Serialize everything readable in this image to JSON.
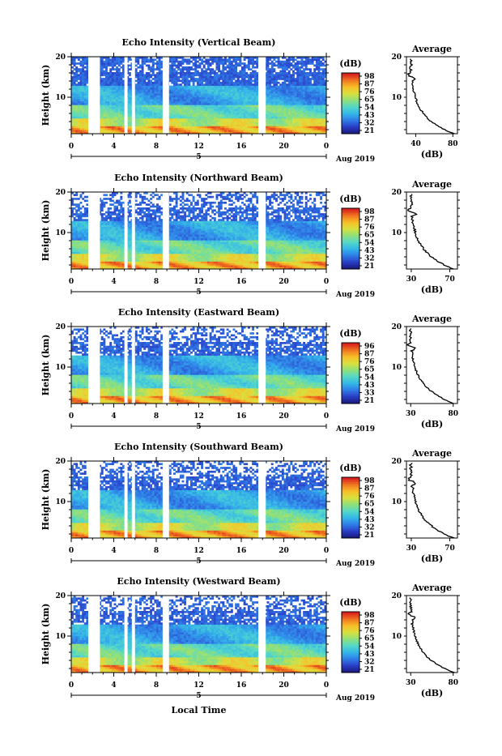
{
  "chart_data": [
    {
      "type": "heatmap",
      "title": "Echo Intensity (Vertical Beam)",
      "ylabel": "Height (km)",
      "xticks": [
        "0",
        "4",
        "8",
        "12",
        "16",
        "20",
        "0"
      ],
      "yticks": [
        "20",
        "10"
      ],
      "xlim": [
        0,
        24
      ],
      "ylim": [
        1,
        20
      ],
      "date_label": "Aug 2019",
      "date_mark": "5",
      "colorbar": {
        "unit": "(dB)",
        "ticks": [
          "98",
          "87",
          "76",
          "65",
          "54",
          "43",
          "32",
          "21"
        ]
      },
      "gaps_hours": [
        [
          1.6,
          2.7
        ],
        [
          5.0,
          5.3
        ],
        [
          5.7,
          6.0
        ],
        [
          8.6,
          9.2
        ],
        [
          17.6,
          18.3
        ]
      ],
      "profile": {
        "title": "Average",
        "xlabel": "(dB)",
        "xticks": [
          "40",
          "80"
        ],
        "xlim": [
          30,
          85
        ],
        "yticks": [
          "20",
          "10"
        ]
      }
    },
    {
      "type": "heatmap",
      "title": "Echo Intensity (Northward Beam)",
      "ylabel": "Height (km)",
      "xticks": [
        "0",
        "4",
        "8",
        "12",
        "16",
        "20",
        "0"
      ],
      "yticks": [
        "20",
        "10"
      ],
      "xlim": [
        0,
        24
      ],
      "ylim": [
        1,
        20
      ],
      "date_label": "Aug 2019",
      "date_mark": "5",
      "colorbar": {
        "unit": "(dB)",
        "ticks": [
          "98",
          "87",
          "76",
          "65",
          "54",
          "43",
          "32",
          "21"
        ]
      },
      "gaps_hours": [
        [
          1.6,
          2.7
        ],
        [
          5.0,
          5.3
        ],
        [
          5.7,
          6.0
        ],
        [
          8.6,
          9.2
        ],
        [
          17.6,
          18.3
        ]
      ],
      "profile": {
        "title": "Average",
        "xlabel": "(dB)",
        "xticks": [
          "30",
          "70"
        ],
        "xlim": [
          25,
          78
        ],
        "yticks": [
          "20",
          "10"
        ]
      }
    },
    {
      "type": "heatmap",
      "title": "Echo Intensity (Eastward Beam)",
      "ylabel": "Height (km)",
      "xticks": [
        "0",
        "4",
        "8",
        "12",
        "16",
        "20",
        "0"
      ],
      "yticks": [
        "20",
        "10"
      ],
      "xlim": [
        0,
        24
      ],
      "ylim": [
        1,
        20
      ],
      "date_label": "Aug 2019",
      "date_mark": "5",
      "colorbar": {
        "unit": "(dB)",
        "ticks": [
          "96",
          "87",
          "76",
          "65",
          "54",
          "43",
          "33",
          "21"
        ]
      },
      "gaps_hours": [
        [
          1.6,
          2.7
        ],
        [
          5.0,
          5.3
        ],
        [
          5.7,
          6.0
        ],
        [
          8.6,
          9.2
        ],
        [
          17.6,
          18.3
        ]
      ],
      "profile": {
        "title": "Average",
        "xlabel": "(dB)",
        "xticks": [
          "30",
          "80"
        ],
        "xlim": [
          25,
          85
        ],
        "yticks": [
          "20",
          "10"
        ]
      }
    },
    {
      "type": "heatmap",
      "title": "Echo Intensity (Southward Beam)",
      "ylabel": "Height (km)",
      "xticks": [
        "0",
        "4",
        "8",
        "12",
        "16",
        "20",
        "0"
      ],
      "yticks": [
        "20",
        "10"
      ],
      "xlim": [
        0,
        24
      ],
      "ylim": [
        1,
        20
      ],
      "date_label": "Aug 2019",
      "date_mark": "5",
      "colorbar": {
        "unit": "(dB)",
        "ticks": [
          "98",
          "87",
          "76",
          "65",
          "54",
          "43",
          "32",
          "21"
        ]
      },
      "gaps_hours": [
        [
          1.6,
          2.7
        ],
        [
          5.0,
          5.3
        ],
        [
          5.7,
          6.0
        ],
        [
          8.6,
          9.2
        ],
        [
          17.6,
          18.3
        ]
      ],
      "profile": {
        "title": "Average",
        "xlabel": "(dB)",
        "xticks": [
          "30",
          "70"
        ],
        "xlim": [
          25,
          78
        ],
        "yticks": [
          "20",
          "10"
        ]
      }
    },
    {
      "type": "heatmap",
      "title": "Echo Intensity (Westward Beam)",
      "ylabel": "Height (km)",
      "xticks": [
        "0",
        "4",
        "8",
        "12",
        "16",
        "20",
        "0"
      ],
      "yticks": [
        "20",
        "10"
      ],
      "xlim": [
        0,
        24
      ],
      "ylim": [
        1,
        20
      ],
      "date_label": "Aug 2019",
      "date_mark": "5",
      "colorbar": {
        "unit": "(dB)",
        "ticks": [
          "98",
          "87",
          "76",
          "65",
          "54",
          "43",
          "32",
          "21"
        ]
      },
      "gaps_hours": [
        [
          1.6,
          2.7
        ],
        [
          5.0,
          5.3
        ],
        [
          5.7,
          6.0
        ],
        [
          8.6,
          9.2
        ],
        [
          17.6,
          18.3
        ]
      ],
      "profile": {
        "title": "Average",
        "xlabel": "(dB)",
        "xticks": [
          "30",
          "80"
        ],
        "xlim": [
          25,
          85
        ],
        "yticks": [
          "20",
          "10"
        ]
      }
    }
  ],
  "xlabel": "Local Time",
  "colors": {
    "colormap": [
      "#1a1a80",
      "#2a3fc8",
      "#2f7fe8",
      "#35b7e8",
      "#55d8c8",
      "#8fe07a",
      "#d8e040",
      "#f7c028",
      "#f07820",
      "#d82020"
    ]
  }
}
